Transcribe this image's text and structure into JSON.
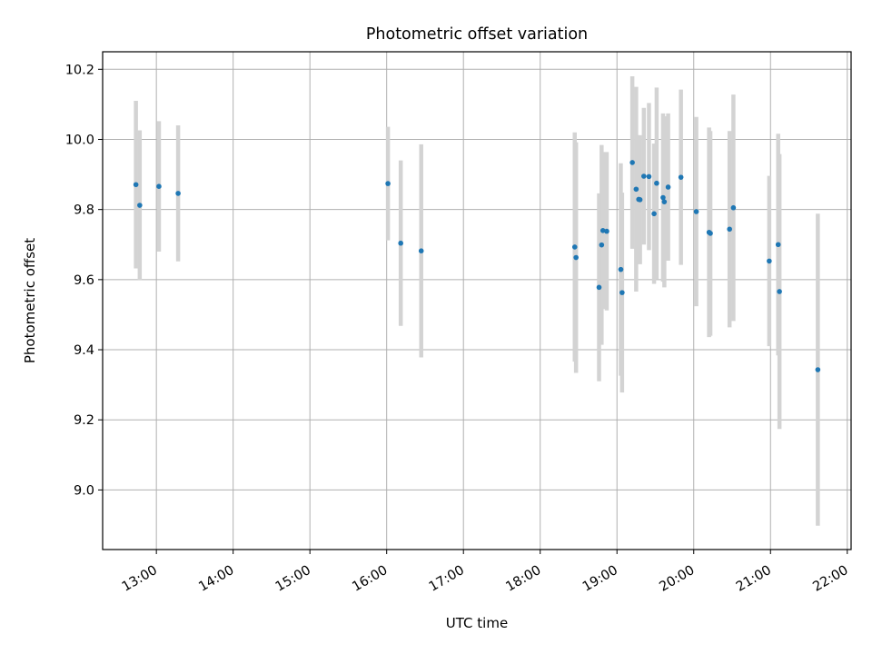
{
  "chart_data": {
    "type": "scatter",
    "title": "Photometric offset variation",
    "xlabel": "UTC time",
    "ylabel": "Photometric offset",
    "x_ticks": [
      "13:00",
      "14:00",
      "15:00",
      "16:00",
      "17:00",
      "18:00",
      "19:00",
      "20:00",
      "21:00",
      "22:00"
    ],
    "y_ticks": [
      "9.0",
      "9.2",
      "9.4",
      "9.6",
      "9.8",
      "10.0",
      "10.2"
    ],
    "xlim": [
      "12:18",
      "22:03"
    ],
    "ylim": [
      8.83,
      10.25
    ],
    "grid": true,
    "point_color": "#1f77b4",
    "errorbar_color": "#d3d3d3",
    "series": [
      {
        "points": [
          {
            "time": "12:44",
            "value": 9.871,
            "low": 9.632,
            "high": 10.11
          },
          {
            "time": "12:47",
            "value": 9.812,
            "low": 9.598,
            "high": 10.026
          },
          {
            "time": "13:02",
            "value": 9.866,
            "low": 9.68,
            "high": 10.052
          },
          {
            "time": "13:17",
            "value": 9.846,
            "low": 9.652,
            "high": 10.04
          },
          {
            "time": "16:01",
            "value": 9.874,
            "low": 9.712,
            "high": 10.036
          },
          {
            "time": "16:11",
            "value": 9.704,
            "low": 9.468,
            "high": 9.94
          },
          {
            "time": "16:27",
            "value": 9.682,
            "low": 9.378,
            "high": 9.986
          },
          {
            "time": "18:27",
            "value": 9.693,
            "low": 9.366,
            "high": 10.02
          },
          {
            "time": "18:28",
            "value": 9.663,
            "low": 9.334,
            "high": 9.992
          },
          {
            "time": "18:46",
            "value": 9.578,
            "low": 9.31,
            "high": 9.846
          },
          {
            "time": "18:48",
            "value": 9.699,
            "low": 9.414,
            "high": 9.984
          },
          {
            "time": "18:49",
            "value": 9.74,
            "low": 9.516,
            "high": 9.964
          },
          {
            "time": "18:52",
            "value": 9.738,
            "low": 9.512,
            "high": 9.964
          },
          {
            "time": "19:03",
            "value": 9.629,
            "low": 9.326,
            "high": 9.932
          },
          {
            "time": "19:04",
            "value": 9.563,
            "low": 9.278,
            "high": 9.848
          },
          {
            "time": "19:12",
            "value": 9.934,
            "low": 9.688,
            "high": 10.18
          },
          {
            "time": "19:15",
            "value": 9.858,
            "low": 9.566,
            "high": 10.15
          },
          {
            "time": "19:17",
            "value": 9.829,
            "low": 9.646,
            "high": 10.012
          },
          {
            "time": "19:18",
            "value": 9.828,
            "low": 9.644,
            "high": 10.012
          },
          {
            "time": "19:21",
            "value": 9.895,
            "low": 9.7,
            "high": 10.09
          },
          {
            "time": "19:25",
            "value": 9.894,
            "low": 9.684,
            "high": 10.104
          },
          {
            "time": "19:29",
            "value": 9.788,
            "low": 9.588,
            "high": 9.988
          },
          {
            "time": "19:31",
            "value": 9.875,
            "low": 9.602,
            "high": 10.148
          },
          {
            "time": "19:36",
            "value": 9.834,
            "low": 9.594,
            "high": 10.074
          },
          {
            "time": "19:37",
            "value": 9.822,
            "low": 9.578,
            "high": 10.066
          },
          {
            "time": "19:40",
            "value": 9.864,
            "low": 9.654,
            "high": 10.074
          },
          {
            "time": "19:50",
            "value": 9.892,
            "low": 9.642,
            "high": 10.142
          },
          {
            "time": "20:02",
            "value": 9.794,
            "low": 9.524,
            "high": 10.064
          },
          {
            "time": "20:12",
            "value": 9.735,
            "low": 9.436,
            "high": 10.034
          },
          {
            "time": "20:13",
            "value": 9.732,
            "low": 9.44,
            "high": 10.024
          },
          {
            "time": "20:28",
            "value": 9.744,
            "low": 9.464,
            "high": 10.024
          },
          {
            "time": "20:31",
            "value": 9.805,
            "low": 9.482,
            "high": 10.128
          },
          {
            "time": "20:59",
            "value": 9.653,
            "low": 9.41,
            "high": 9.896
          },
          {
            "time": "21:06",
            "value": 9.7,
            "low": 9.384,
            "high": 10.016
          },
          {
            "time": "21:07",
            "value": 9.566,
            "low": 9.174,
            "high": 9.958
          },
          {
            "time": "21:37",
            "value": 9.343,
            "low": 8.898,
            "high": 9.788
          }
        ]
      }
    ]
  }
}
